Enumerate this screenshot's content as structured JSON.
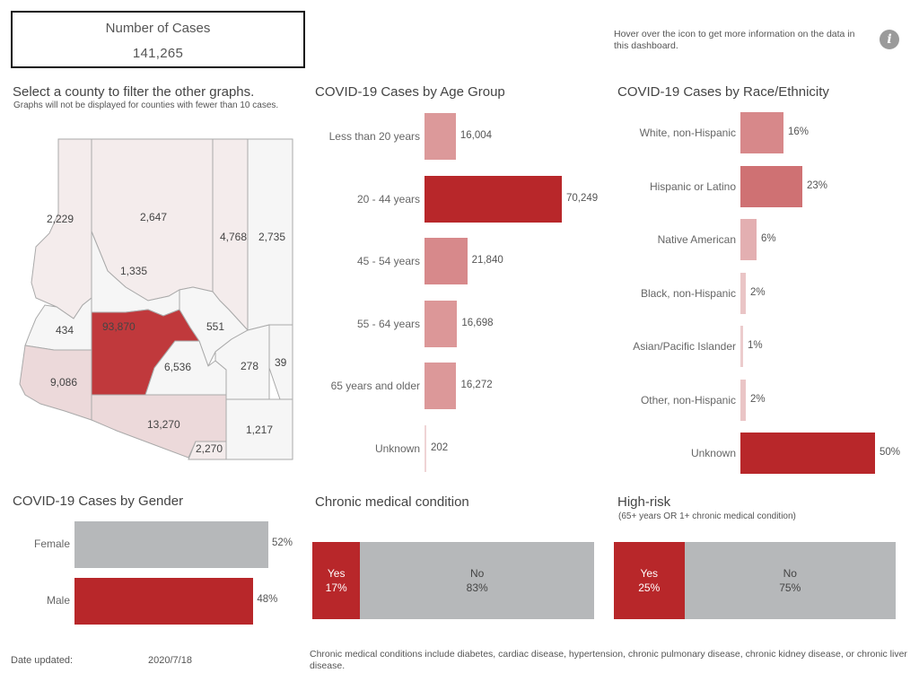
{
  "summary": {
    "label": "Number of Cases",
    "value": "141,265"
  },
  "info": {
    "note": "Hover over the icon to get more information on the data in this dashboard.",
    "icon": "info-icon"
  },
  "map": {
    "title": "Select a county to filter the other graphs.",
    "subtitle": "Graphs will not be displayed for counties with fewer than 10 cases.",
    "counties": [
      {
        "id": "mohave",
        "value": "2,229"
      },
      {
        "id": "coconino",
        "value": "2,647"
      },
      {
        "id": "navajo",
        "value": "4,768"
      },
      {
        "id": "apache",
        "value": "2,735"
      },
      {
        "id": "yavapai",
        "value": "1,335"
      },
      {
        "id": "lapaz",
        "value": "434"
      },
      {
        "id": "maricopa",
        "value": "93,870"
      },
      {
        "id": "gila",
        "value": "551"
      },
      {
        "id": "yuma",
        "value": "9,086"
      },
      {
        "id": "pinal",
        "value": "6,536"
      },
      {
        "id": "graham",
        "value": "278"
      },
      {
        "id": "greenlee",
        "value": "39"
      },
      {
        "id": "pima",
        "value": "13,270"
      },
      {
        "id": "cochise",
        "value": "1,217"
      },
      {
        "id": "santacruz",
        "value": "2,270"
      }
    ],
    "colors": {
      "high": "#c0393c",
      "mid": "#e7cfd0",
      "low": "#f4ecec",
      "lowest": "#f6f6f6"
    }
  },
  "age": {
    "title": "COVID-19 Cases by Age Group",
    "rows": [
      {
        "label": "Less than 20 years",
        "value": 16004,
        "display": "16,004"
      },
      {
        "label": "20 - 44 years",
        "value": 70249,
        "display": "70,249"
      },
      {
        "label": "45 - 54 years",
        "value": 21840,
        "display": "21,840"
      },
      {
        "label": "55 - 64 years",
        "value": 16698,
        "display": "16,698"
      },
      {
        "label": "65 years and older",
        "value": 16272,
        "display": "16,272"
      },
      {
        "label": "Unknown",
        "value": 202,
        "display": "202"
      }
    ]
  },
  "race": {
    "title": "COVID-19 Cases by Race/Ethnicity",
    "rows": [
      {
        "label": "White, non-Hispanic",
        "value": 16,
        "display": "16%"
      },
      {
        "label": "Hispanic or Latino",
        "value": 23,
        "display": "23%"
      },
      {
        "label": "Native American",
        "value": 6,
        "display": "6%"
      },
      {
        "label": "Black, non-Hispanic",
        "value": 2,
        "display": "2%"
      },
      {
        "label": "Asian/Pacific Islander",
        "value": 1,
        "display": "1%"
      },
      {
        "label": "Other, non-Hispanic",
        "value": 2,
        "display": "2%"
      },
      {
        "label": "Unknown",
        "value": 50,
        "display": "50%"
      }
    ]
  },
  "gender": {
    "title": "COVID-19 Cases by Gender",
    "rows": [
      {
        "label": "Female",
        "value": 52,
        "display": "52%",
        "color": "#b6b8ba"
      },
      {
        "label": "Male",
        "value": 48,
        "display": "48%",
        "color": "#b8272a"
      }
    ]
  },
  "chronic": {
    "title": "Chronic medical condition",
    "yes_label": "Yes",
    "yes_value": 17,
    "yes_display": "17%",
    "no_label": "No",
    "no_value": 83,
    "no_display": "83%"
  },
  "highrisk": {
    "title": "High-risk",
    "subtitle": "(65+ years OR 1+ chronic medical condition)",
    "yes_label": "Yes",
    "yes_value": 25,
    "yes_display": "25%",
    "no_label": "No",
    "no_value": 75,
    "no_display": "75%"
  },
  "footer": {
    "date_label": "Date updated:",
    "date_value": "2020/7/18",
    "note": "Chronic medical conditions include diabetes, cardiac disease, hypertension, chronic pulmonary disease, chronic kidney disease, or chronic liver disease."
  }
}
